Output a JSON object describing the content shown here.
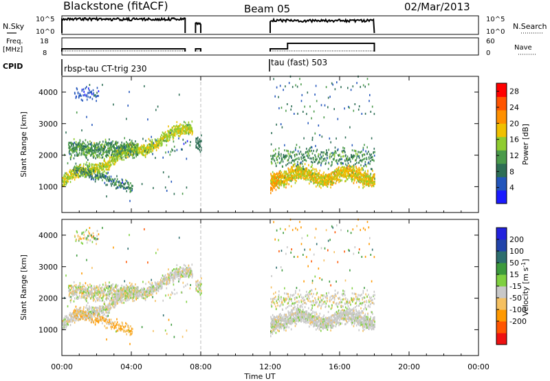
{
  "header": {
    "station": "Blackstone (fitACF)",
    "beam": "Beam 05",
    "date": "02/Mar/2013"
  },
  "status_panels": {
    "nsky_label": "N.Sky",
    "nsky_ticks": [
      "10^5",
      "10^0"
    ],
    "nsearch_label": "N.Search",
    "nsearch_ticks": [
      "10^5",
      "10^0"
    ],
    "freq_label_line1": "Freq.",
    "freq_label_line2": "[MHz]",
    "freq_ticks": [
      "18",
      "8"
    ],
    "nave_label": "Nave",
    "nave_ticks": [
      "60",
      "0"
    ],
    "cpid_label": "CPID",
    "cpid_entries": [
      {
        "label": "rbsp-tau CT-trig 230",
        "start_hour": 0
      },
      {
        "label": "tau (fast) 503",
        "start_hour": 12
      }
    ]
  },
  "time_axis": {
    "label": "Time UT",
    "ticks": [
      "00:00",
      "04:00",
      "08:00",
      "12:00",
      "16:00",
      "20:00",
      "00:00"
    ],
    "tick_hours": [
      0,
      4,
      8,
      12,
      16,
      20,
      24
    ]
  },
  "colors": {
    "power": [
      "#1a1aff",
      "#2255bb",
      "#2d6e55",
      "#4a9a4a",
      "#8fcc30",
      "#f0c000",
      "#ff9000",
      "#ff5500",
      "#ff0000"
    ],
    "velocity": [
      "#ee1111",
      "#ff5500",
      "#ff9900",
      "#f5c060",
      "#c8c8c8",
      "#7fd040",
      "#3c9a3c",
      "#2d6e6e",
      "#2244aa",
      "#2222dd"
    ]
  },
  "chart_data": [
    {
      "type": "heatmap",
      "title": "",
      "ylabel": "Slant Range [km]",
      "xlabel": "",
      "xlim_hours": [
        0,
        24
      ],
      "ylim": [
        180,
        4500
      ],
      "y_ticks": [
        1000,
        2000,
        3000,
        4000
      ],
      "colorbar_label": "Power [dB]",
      "colorbar_ticks": [
        4,
        8,
        12,
        16,
        20,
        24,
        28
      ],
      "colorbar_range": [
        0,
        30
      ],
      "data_gaps_hours": [
        [
          7.5,
          7.7
        ],
        [
          8.0,
          12.0
        ]
      ],
      "dominant_features": [
        {
          "t_start": 0,
          "t_end": 4.5,
          "range_km": [
            1000,
            2400
          ],
          "power_db": 18
        },
        {
          "t_start": 0.7,
          "t_end": 2.0,
          "range_km": [
            3600,
            4200
          ],
          "power_db": 6
        },
        {
          "t_start": 12.0,
          "t_end": 18.0,
          "range_km": [
            900,
            1700
          ],
          "power_db": 20
        }
      ]
    },
    {
      "type": "heatmap",
      "title": "",
      "ylabel": "Slant Range [km]",
      "xlabel": "Time UT",
      "xlim_hours": [
        0,
        24
      ],
      "ylim": [
        180,
        4500
      ],
      "y_ticks": [
        1000,
        2000,
        3000,
        4000
      ],
      "colorbar_label": "Velocity [m s^-1]",
      "colorbar_ticks": [
        200,
        100,
        50,
        15,
        -15,
        -50,
        -100,
        -200
      ],
      "colorbar_range": [
        -250,
        250
      ],
      "data_gaps_hours": [
        [
          7.5,
          7.7
        ],
        [
          8.0,
          12.0
        ]
      ],
      "dominant_features": [
        {
          "t_start": 0,
          "t_end": 4.5,
          "range_km": [
            1000,
            2400
          ],
          "velocity_ms": 0
        },
        {
          "t_start": 2.5,
          "t_end": 4.5,
          "range_km": [
            1200,
            1700
          ],
          "velocity_ms": -60
        },
        {
          "t_start": 12.0,
          "t_end": 18.0,
          "range_km": [
            900,
            1700
          ],
          "velocity_ms": 0
        }
      ]
    }
  ]
}
